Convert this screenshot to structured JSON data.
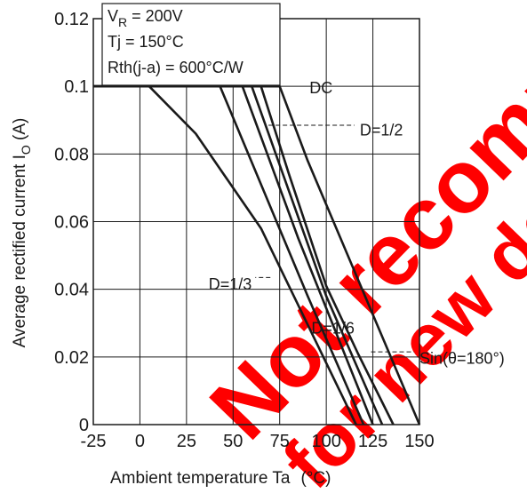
{
  "chart_data": {
    "type": "line",
    "xlabel": "Ambient temperature   Ta",
    "xunit": "(°C)",
    "ylabel_main": "Average rectified current   I",
    "ylabel_sub": "O",
    "yunit": "(A)",
    "xlim": [
      -25,
      150
    ],
    "ylim": [
      0,
      0.12
    ],
    "x_ticks": [
      -25,
      0,
      25,
      50,
      75,
      100,
      125,
      150
    ],
    "x_tick_labels": [
      "-25",
      "0",
      "25",
      "50",
      "75",
      "100",
      "125",
      "150"
    ],
    "y_ticks": [
      0,
      0.02,
      0.04,
      0.06,
      0.08,
      0.1,
      0.12
    ],
    "y_tick_labels": [
      "0",
      "0.02",
      "0.04",
      "0.06",
      "0.08",
      "0.1",
      "0.12"
    ],
    "grid": true,
    "conditions": {
      "vr_prefix": "V",
      "vr_sub": "R",
      "vr_value": " = 200V",
      "tj": "Tj = 150°C",
      "rth": "Rth(j-a) = 600°C/W"
    },
    "series": [
      {
        "name": "DC",
        "points": [
          [
            -25,
            0.1
          ],
          [
            75,
            0.1
          ],
          [
            90,
            0.078
          ],
          [
            150,
            0
          ]
        ]
      },
      {
        "name": "D=1/2",
        "points": [
          [
            -25,
            0.1
          ],
          [
            65,
            0.1
          ],
          [
            80,
            0.074
          ],
          [
            100,
            0.041
          ],
          [
            117,
            0.021
          ],
          [
            136,
            0
          ]
        ]
      },
      {
        "name": "",
        "points": [
          [
            -25,
            0.1
          ],
          [
            60,
            0.1
          ],
          [
            100,
            0.038
          ],
          [
            130,
            0
          ]
        ]
      },
      {
        "name": "D=1/3",
        "points": [
          [
            -25,
            0.1
          ],
          [
            55,
            0.1
          ],
          [
            85,
            0.055
          ],
          [
            125,
            0
          ]
        ]
      },
      {
        "name": "D=1/6",
        "points": [
          [
            -25,
            0.1
          ],
          [
            43,
            0.1
          ],
          [
            90,
            0.038
          ],
          [
            120,
            0
          ]
        ]
      },
      {
        "name": "Sin(θ=180°)",
        "points": [
          [
            -25,
            0.1
          ],
          [
            5,
            0.1
          ],
          [
            30,
            0.086
          ],
          [
            65,
            0.058
          ],
          [
            94,
            0.025
          ],
          [
            116,
            0
          ]
        ]
      }
    ],
    "annotations": [
      {
        "text": "DC",
        "x": 91,
        "y": 0.0995,
        "leader_from": null
      },
      {
        "text": "D=1/2",
        "x": 118,
        "y": 0.087,
        "leader_from": [
          69,
          0.0885
        ]
      },
      {
        "text": "D=1/3",
        "x": 60,
        "y": 0.0415,
        "leader_from": [
          70,
          0.0435
        ]
      },
      {
        "text": "D=1/6",
        "x": 92,
        "y": 0.0285,
        "leader_from": null
      },
      {
        "text": "Sin(θ=180°)",
        "x": 150,
        "y": 0.0195,
        "leader_from": [
          124,
          0.0215
        ]
      }
    ]
  },
  "watermark": {
    "line1": "Not recommended",
    "line2": "for new design",
    "color": "#ff0000"
  }
}
